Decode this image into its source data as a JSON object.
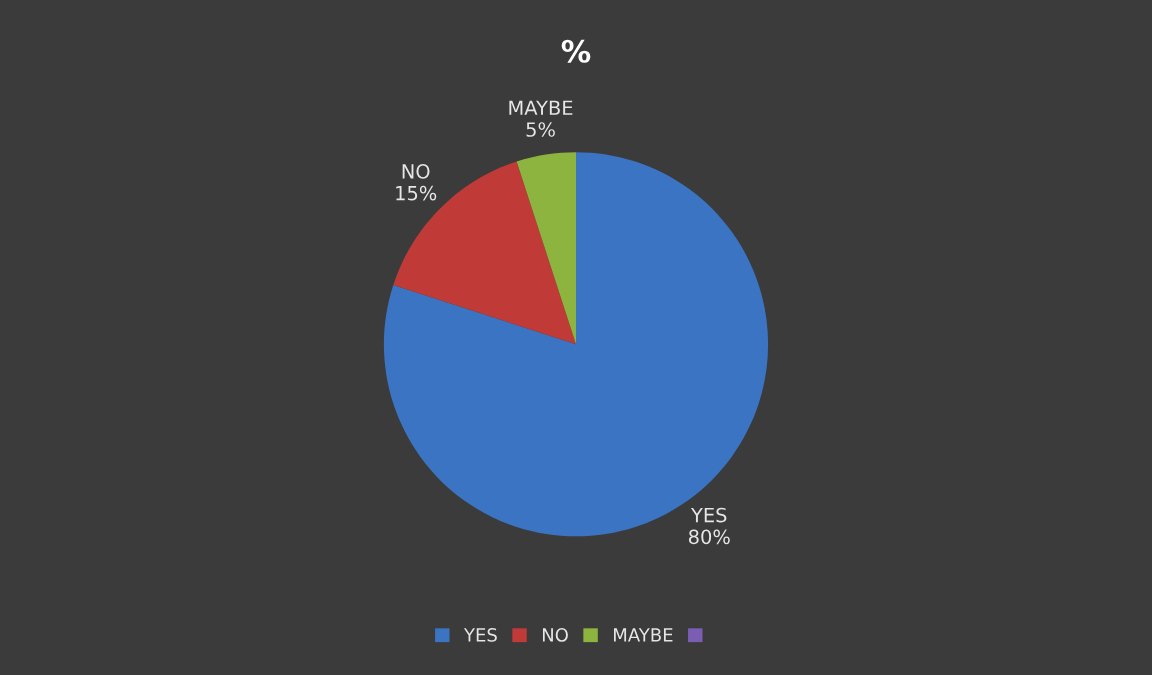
{
  "chart_data": {
    "type": "pie",
    "title": "%",
    "categories": [
      "YES",
      "NO",
      "MAYBE",
      null
    ],
    "values": [
      80,
      15,
      5,
      0
    ],
    "value_labels": [
      "80%",
      "15%",
      "5%",
      null
    ],
    "colors": [
      "#3a74c2",
      "#c03b37",
      "#8db43f",
      "#7b5eb4"
    ],
    "legend": "bottom"
  }
}
